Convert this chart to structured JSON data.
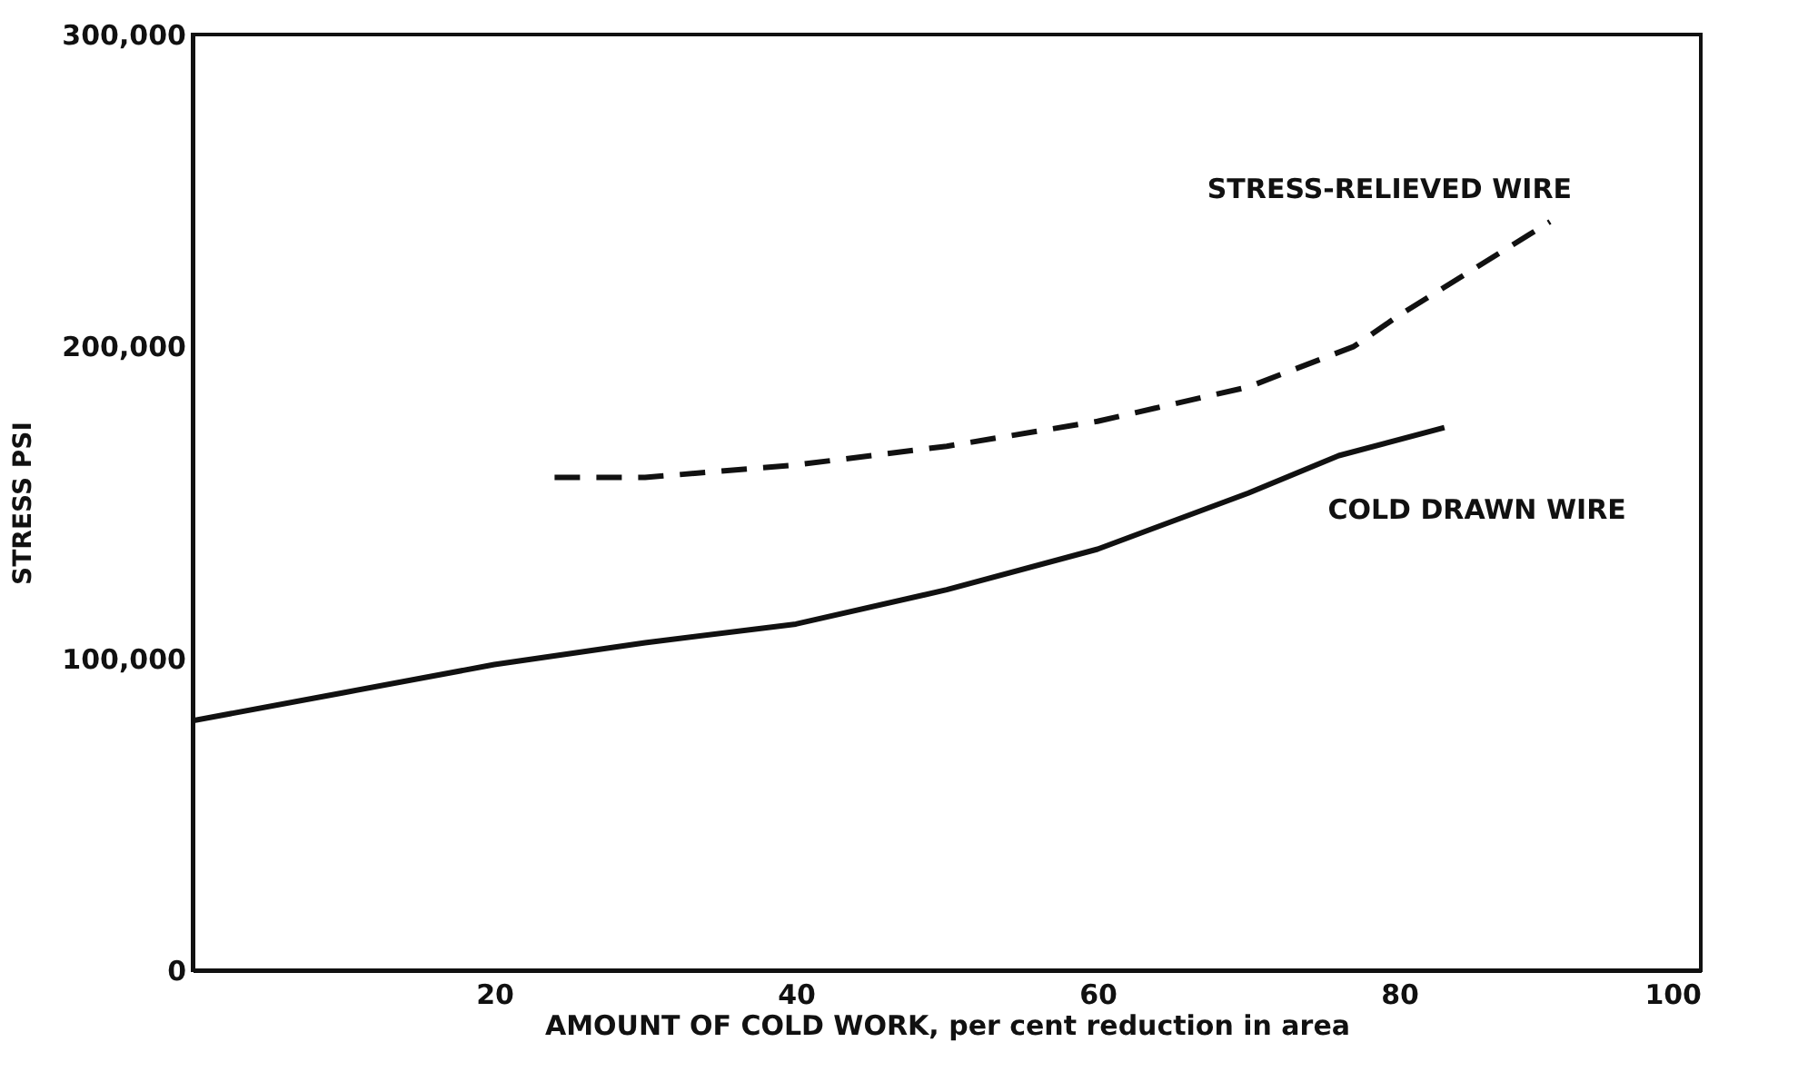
{
  "chart_data": {
    "type": "line",
    "xlabel": "AMOUNT OF COLD WORK, per cent reduction in area",
    "ylabel": "STRESS PSI",
    "xlim": [
      0,
      100
    ],
    "xticks": [
      20,
      40,
      60,
      80,
      100
    ],
    "ylim": [
      0,
      300000
    ],
    "yticks": [
      {
        "value": 0,
        "label": "0"
      },
      {
        "value": 100000,
        "label": "100,000"
      },
      {
        "value": 200000,
        "label": "200,000"
      },
      {
        "value": 300000,
        "label": "300,000"
      }
    ],
    "grid": false,
    "series": [
      {
        "name": "STRESS-RELIEVED WIRE",
        "color": "#111111",
        "line_style": "dashed",
        "x": [
          24,
          30,
          40,
          50,
          60,
          70,
          77,
          80,
          90
        ],
        "values": [
          158000,
          158000,
          162000,
          168000,
          176000,
          187000,
          200000,
          210000,
          240000
        ]
      },
      {
        "name": "COLD DRAWN WIRE",
        "color": "#111111",
        "line_style": "solid",
        "x": [
          0,
          10,
          20,
          30,
          40,
          50,
          60,
          70,
          76,
          83
        ],
        "values": [
          80000,
          89000,
          98000,
          105000,
          111000,
          122000,
          135000,
          153000,
          165000,
          174000
        ]
      }
    ]
  }
}
